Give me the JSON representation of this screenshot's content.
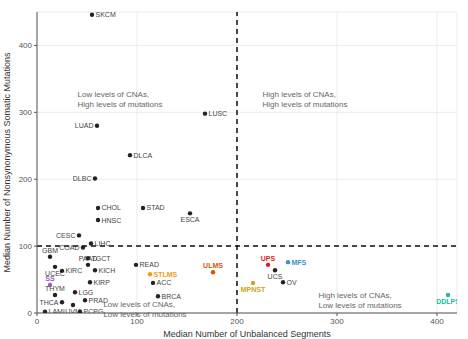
{
  "chart_data": {
    "type": "scatter",
    "x_label": "Median Number of Unbalanced Segments",
    "y_label": "Median Number of Nonsynonymous Somatic Mutations",
    "labels": [
      "SKCM",
      "LUSC",
      "LUAD",
      "DLCA",
      "DLBC",
      "CHOL",
      "STAD",
      "HNSC",
      "ESCA",
      "CESC",
      "LIHC",
      "COAD",
      "TGCT",
      "GBM",
      "UCEC",
      "KIRC",
      "PAAD",
      "KICH",
      "READ",
      "KIRP",
      "LGG",
      "PRAD",
      "ACC",
      "BRCA",
      "STLMS",
      "ULMS",
      "SS",
      "THYM",
      "THCA",
      "UVM",
      "PCPG",
      "LAML",
      "UPS",
      "UCS",
      "MFS",
      "MPNST",
      "OV",
      "DDLPS"
    ],
    "x": [
      55,
      168,
      60,
      93,
      58,
      61,
      106,
      61,
      153,
      42,
      54,
      46,
      51,
      13,
      18,
      25,
      51,
      58,
      99,
      53,
      38,
      48,
      116,
      121,
      113,
      176,
      13,
      18,
      25,
      36,
      43,
      8,
      231,
      238,
      251,
      216,
      246,
      411
    ],
    "values": [
      446,
      298,
      280,
      236,
      201,
      157,
      157,
      139,
      149,
      116,
      104,
      98,
      82,
      84,
      69,
      63,
      72,
      64,
      72,
      46,
      31,
      19,
      45,
      25,
      58,
      61,
      42,
      27,
      16,
      12,
      2,
      2,
      72,
      64,
      76,
      45,
      46,
      27
    ],
    "colors": [
      "#222222",
      "#222222",
      "#222222",
      "#222222",
      "#222222",
      "#222222",
      "#222222",
      "#222222",
      "#222222",
      "#222222",
      "#222222",
      "#222222",
      "#222222",
      "#222222",
      "#222222",
      "#222222",
      "#222222",
      "#222222",
      "#222222",
      "#222222",
      "#222222",
      "#222222",
      "#222222",
      "#222222",
      "#f39c12",
      "#d35400",
      "#9b59b6",
      "#222222",
      "#222222",
      "#222222",
      "#222222",
      "#222222",
      "#e31a1c",
      "#222222",
      "#3a8fc7",
      "#d4a017",
      "#222222",
      "#1abc9c"
    ],
    "xlim": [
      0,
      420
    ],
    "ylim": [
      0,
      450
    ],
    "xticks": [
      0,
      100,
      200,
      300,
      400
    ],
    "yticks": [
      0,
      100,
      200,
      300,
      400
    ],
    "grid": true,
    "vlines": [
      200
    ],
    "hlines": [
      100
    ],
    "annotations": [
      [
        "Low levels of CNAs,",
        "High levels of mutations"
      ],
      [
        "High levels of CNAs,",
        "High levels of mutations"
      ],
      [
        "Low levels of CNAs,",
        "Low levels of mutations"
      ],
      [
        "High levels of CNAs,",
        "Low levels of mutations"
      ]
    ]
  }
}
